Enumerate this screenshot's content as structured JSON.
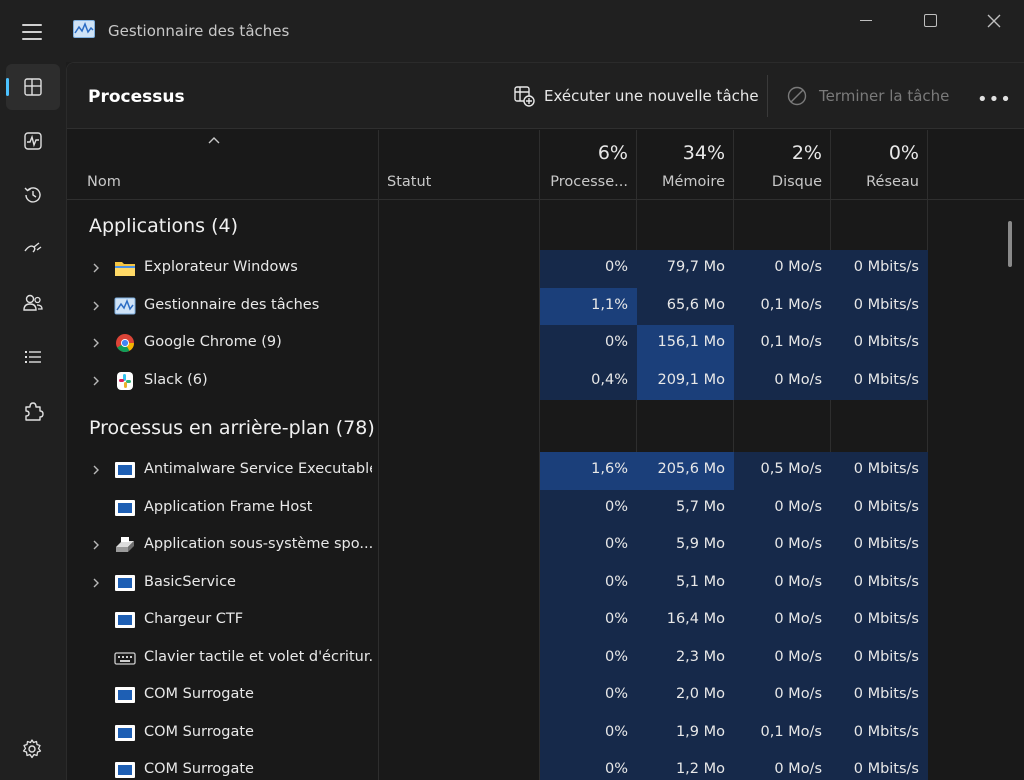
{
  "window": {
    "title": "Gestionnaire des tâches"
  },
  "rail": [
    {
      "name": "processes-nav-icon",
      "active": true
    },
    {
      "name": "performance-nav-icon"
    },
    {
      "name": "app-history-nav-icon"
    },
    {
      "name": "startup-apps-nav-icon"
    },
    {
      "name": "users-nav-icon"
    },
    {
      "name": "details-nav-icon"
    },
    {
      "name": "services-nav-icon"
    }
  ],
  "toolbar": {
    "page_title": "Processus",
    "run_task": "Exécuter une nouvelle tâche",
    "end_task": "Terminer la tâche",
    "more": "•••"
  },
  "columns": {
    "name": "Nom",
    "status": "Statut",
    "cpu_pct": "6%",
    "cpu": "Processe...",
    "mem_pct": "34%",
    "mem": "Mémoire",
    "disk_pct": "2%",
    "disk": "Disque",
    "net_pct": "0%",
    "net": "Réseau"
  },
  "groups": {
    "apps": "Applications (4)",
    "background": "Processus en arrière-plan (78)"
  },
  "apps": [
    {
      "name": "Explorateur Windows",
      "icon": "folder-icon",
      "cpu": "0%",
      "mem": "79,7 Mo",
      "disk": "0 Mo/s",
      "net": "0 Mbits/s",
      "expand": true
    },
    {
      "name": "Gestionnaire des tâches",
      "icon": "taskmgr-icon",
      "cpu": "1,1%",
      "mem": "65,6 Mo",
      "disk": "0,1 Mo/s",
      "net": "0 Mbits/s",
      "expand": true
    },
    {
      "name": "Google Chrome (9)",
      "icon": "chrome-icon",
      "cpu": "0%",
      "mem": "156,1 Mo",
      "disk": "0,1 Mo/s",
      "net": "0 Mbits/s",
      "expand": true
    },
    {
      "name": "Slack (6)",
      "icon": "slack-icon",
      "cpu": "0,4%",
      "mem": "209,1 Mo",
      "disk": "0 Mo/s",
      "net": "0 Mbits/s",
      "expand": true
    }
  ],
  "background": [
    {
      "name": "Antimalware Service Executable",
      "icon": "window-app-icon",
      "cpu": "1,6%",
      "mem": "205,6 Mo",
      "disk": "0,5 Mo/s",
      "net": "0 Mbits/s",
      "expand": true
    },
    {
      "name": "Application Frame Host",
      "icon": "window-app-icon",
      "cpu": "0%",
      "mem": "5,7 Mo",
      "disk": "0 Mo/s",
      "net": "0 Mbits/s",
      "expand": false
    },
    {
      "name": "Application sous-système spo...",
      "icon": "printer-icon",
      "cpu": "0%",
      "mem": "5,9 Mo",
      "disk": "0 Mo/s",
      "net": "0 Mbits/s",
      "expand": true
    },
    {
      "name": "BasicService",
      "icon": "window-app-icon",
      "cpu": "0%",
      "mem": "5,1 Mo",
      "disk": "0 Mo/s",
      "net": "0 Mbits/s",
      "expand": true
    },
    {
      "name": "Chargeur CTF",
      "icon": "window-app-icon",
      "cpu": "0%",
      "mem": "16,4 Mo",
      "disk": "0 Mo/s",
      "net": "0 Mbits/s",
      "expand": false
    },
    {
      "name": "Clavier tactile et volet d'écritur...",
      "icon": "keyboard-icon",
      "cpu": "0%",
      "mem": "2,3 Mo",
      "disk": "0 Mo/s",
      "net": "0 Mbits/s",
      "expand": false
    },
    {
      "name": "COM Surrogate",
      "icon": "window-app-icon",
      "cpu": "0%",
      "mem": "2,0 Mo",
      "disk": "0 Mo/s",
      "net": "0 Mbits/s",
      "expand": false
    },
    {
      "name": "COM Surrogate",
      "icon": "window-app-icon",
      "cpu": "0%",
      "mem": "1,9 Mo",
      "disk": "0,1 Mo/s",
      "net": "0 Mbits/s",
      "expand": false
    },
    {
      "name": "COM Surrogate",
      "icon": "window-app-icon",
      "cpu": "0%",
      "mem": "1,2 Mo",
      "disk": "0 Mo/s",
      "net": "0 Mbits/s",
      "expand": false
    }
  ],
  "colors": {
    "accent": "#4cc2ff",
    "heat_low": "#16294a",
    "heat_mid": "#18315a",
    "heat_high": "#1b3f7a"
  }
}
